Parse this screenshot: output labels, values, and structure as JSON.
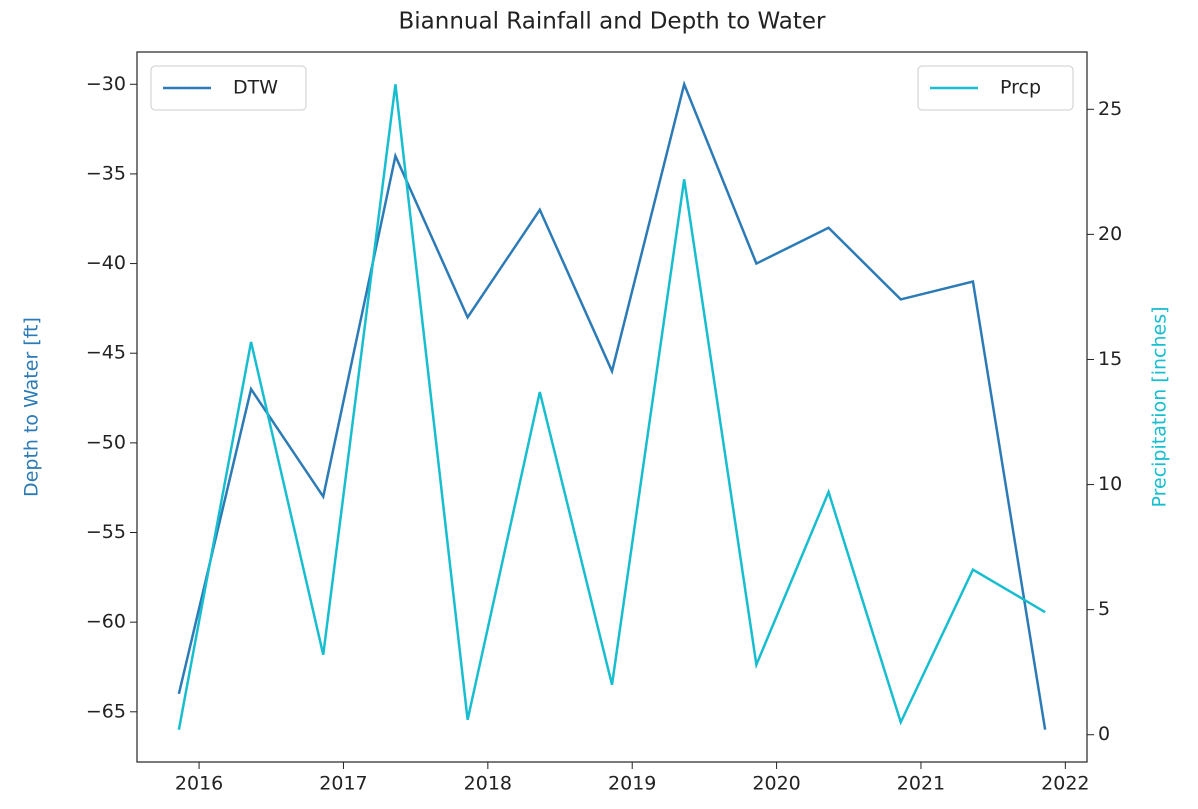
{
  "chart_data": {
    "type": "line",
    "title": "Biannual Rainfall and Depth to Water",
    "ylabel": "Depth to Water [ft]",
    "y2label": "Precipitation [inches]",
    "x": [
      2015.86,
      2016.36,
      2016.86,
      2017.36,
      2017.86,
      2018.36,
      2018.86,
      2019.36,
      2019.86,
      2020.36,
      2020.86,
      2021.36,
      2021.86
    ],
    "series": [
      {
        "name": "DTW",
        "color": "#2c7bb6",
        "values": [
          -64,
          -47,
          -53,
          -34,
          -43,
          -37,
          -46,
          -30,
          -40,
          -38,
          -42,
          -41,
          -66
        ]
      },
      {
        "name": "Prcp",
        "color": "#17becf",
        "axis": "y2",
        "values": [
          0.2,
          15.7,
          3.2,
          26.0,
          0.6,
          13.7,
          2.0,
          22.2,
          2.8,
          9.7,
          0.5,
          6.6,
          4.9
        ]
      }
    ],
    "xlim": [
      2015.57,
      2022.15
    ],
    "xticks": [
      2016,
      2017,
      2018,
      2019,
      2020,
      2021,
      2022
    ],
    "ylim": [
      -67.8,
      -28.2
    ],
    "yticks": [
      {
        "value": -65,
        "label": "−65"
      },
      {
        "value": -60,
        "label": "−60"
      },
      {
        "value": -55,
        "label": "−55"
      },
      {
        "value": -50,
        "label": "−50"
      },
      {
        "value": -45,
        "label": "−45"
      },
      {
        "value": -40,
        "label": "−40"
      },
      {
        "value": -35,
        "label": "−35"
      },
      {
        "value": -30,
        "label": "−30"
      }
    ],
    "y2lim": [
      -1.09,
      27.29
    ],
    "y2ticks": [
      0,
      5,
      10,
      15,
      20,
      25
    ],
    "legend": [
      "upper left",
      "upper right"
    ]
  }
}
